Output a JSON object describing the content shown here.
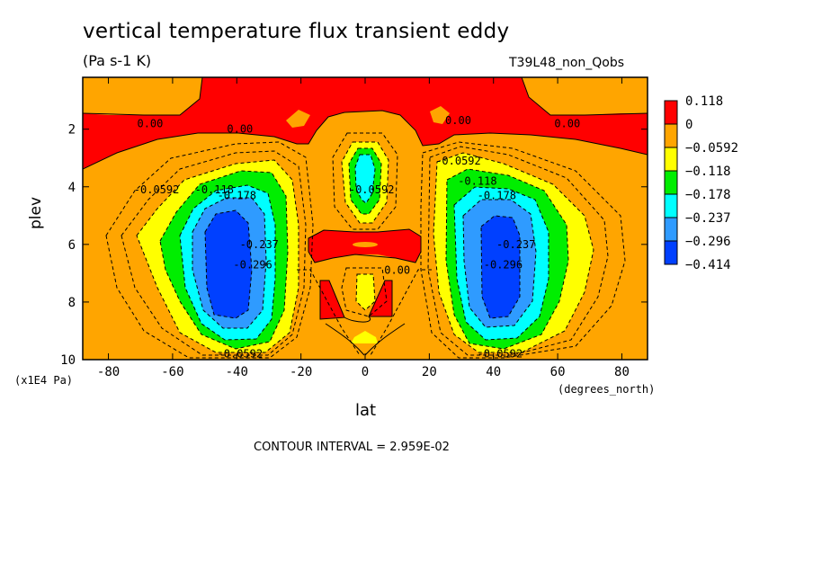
{
  "chart_data": {
    "type": "contour",
    "title": "vertical temperature flux transient eddy",
    "units": "(Pa s-1 K)",
    "run_label": "T39L48_non_Qobs",
    "xlabel": "lat",
    "xunits": "(degrees_north)",
    "ylabel": "plev",
    "yunits": "(x1E4 Pa)",
    "xlim": [
      -88,
      88
    ],
    "ylim": [
      10,
      0.2
    ],
    "xticks": [
      -80,
      -60,
      -40,
      -20,
      0,
      20,
      40,
      60,
      80
    ],
    "yticks": [
      2,
      4,
      6,
      8,
      10
    ],
    "contour_interval_text": "CONTOUR INTERVAL = 2.959E-02",
    "colorbar": {
      "levels": [
        "0.118",
        "0",
        "−0.0592",
        "−0.118",
        "−0.178",
        "−0.237",
        "−0.296",
        "−0.414"
      ],
      "colors": [
        "#ff0000",
        "#ffa500",
        "#ffff00",
        "#00ee00",
        "#00ffff",
        "#2f9bff",
        "#0040ff"
      ]
    },
    "contour_labels": [
      {
        "text": "0.00",
        "x": -67,
        "y": 1.8
      },
      {
        "text": "0.00",
        "x": -39,
        "y": 2.0
      },
      {
        "text": "0.00",
        "x": 29,
        "y": 1.7
      },
      {
        "text": "0.00",
        "x": 63,
        "y": 1.8
      },
      {
        "text": "0.00",
        "x": 10,
        "y": 6.9
      },
      {
        "text": "-0.0592",
        "x": -65,
        "y": 4.1
      },
      {
        "text": "-0.118",
        "x": -47,
        "y": 4.1
      },
      {
        "text": "-0.178",
        "x": -40,
        "y": 4.3
      },
      {
        "text": "-0.296",
        "x": -35,
        "y": 6.7
      },
      {
        "text": "-0.237",
        "x": -33,
        "y": 6.0
      },
      {
        "text": "-0.0592",
        "x": -39,
        "y": 9.8
      },
      {
        "text": "-0.0592",
        "x": 2,
        "y": 4.1
      },
      {
        "text": "-0.0592",
        "x": 29,
        "y": 3.1
      },
      {
        "text": "-0.118",
        "x": 35,
        "y": 3.8
      },
      {
        "text": "-0.178",
        "x": 41,
        "y": 4.3
      },
      {
        "text": "-0.296",
        "x": 43,
        "y": 6.7
      },
      {
        "text": "-0.237",
        "x": 47,
        "y": 6.0
      },
      {
        "text": "-0.0592",
        "x": 42,
        "y": 9.8
      }
    ]
  }
}
